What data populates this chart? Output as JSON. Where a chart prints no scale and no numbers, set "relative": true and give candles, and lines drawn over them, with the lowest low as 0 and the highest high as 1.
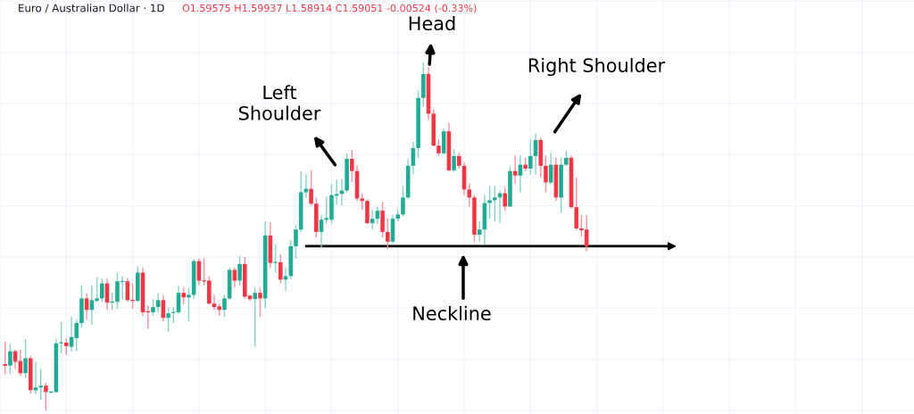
{
  "chart_data": {
    "type": "candlestick",
    "relative": true,
    "title": "Euro / Australian Dollar · 1D",
    "subtitle": "O1.59575 H1.59937 L1.58914 C1.59051 -0.00524 (-0.33%)",
    "annotations": [
      "Head",
      "Left\nShoulder",
      "Right Shoulder",
      "Neckline"
    ],
    "ref_lines": [
      {
        "axis": "y",
        "value": 0.472,
        "color": "#000000"
      }
    ],
    "grid": true,
    "categories": [
      null,
      null,
      null,
      null,
      null,
      null,
      null,
      null,
      null,
      null,
      null,
      null,
      null,
      null,
      null,
      null,
      null,
      null,
      null,
      null,
      null,
      null,
      null,
      null,
      null,
      null,
      null,
      null,
      null,
      null,
      null,
      null,
      null,
      null,
      null,
      null,
      null,
      null,
      null,
      null,
      null,
      null,
      null,
      null,
      null,
      null,
      null,
      null,
      null,
      null,
      null,
      null,
      null,
      null,
      null,
      null,
      null,
      null,
      null,
      null,
      null,
      null,
      null,
      null,
      null,
      null,
      null,
      null,
      null,
      null,
      null,
      null,
      null,
      null,
      null,
      null,
      null,
      null,
      null,
      null,
      null,
      null,
      null,
      null,
      null,
      null,
      null,
      null,
      null,
      null,
      null,
      null,
      null,
      null,
      null,
      null,
      null,
      null,
      null,
      null,
      null,
      null,
      null,
      null,
      null,
      null,
      null,
      null,
      null,
      null,
      null,
      null,
      null,
      null,
      null
    ],
    "ohlc": [
      [
        0.133,
        0.198,
        0.104,
        0.128
      ],
      [
        0.129,
        0.19,
        0.104,
        0.17
      ],
      [
        0.17,
        0.175,
        0.119,
        0.14
      ],
      [
        0.142,
        0.175,
        0.099,
        0.107
      ],
      [
        0.107,
        0.206,
        0.094,
        0.15
      ],
      [
        0.15,
        0.157,
        0.048,
        0.058
      ],
      [
        0.058,
        0.14,
        0.046,
        0.066
      ],
      [
        0.066,
        0.119,
        0.03,
        0.071
      ],
      [
        0.071,
        0.079,
        0.0,
        0.053
      ],
      [
        0.051,
        0.056,
        0.048,
        0.053
      ],
      [
        0.053,
        0.206,
        0.051,
        0.193
      ],
      [
        0.193,
        0.254,
        0.165,
        0.195
      ],
      [
        0.195,
        0.208,
        0.16,
        0.185
      ],
      [
        0.183,
        0.269,
        0.17,
        0.211
      ],
      [
        0.208,
        0.261,
        0.17,
        0.251
      ],
      [
        0.251,
        0.36,
        0.239,
        0.322
      ],
      [
        0.322,
        0.335,
        0.261,
        0.289
      ],
      [
        0.289,
        0.36,
        0.246,
        0.317
      ],
      [
        0.315,
        0.383,
        0.31,
        0.322
      ],
      [
        0.322,
        0.378,
        0.31,
        0.365
      ],
      [
        0.365,
        0.378,
        0.289,
        0.31
      ],
      [
        0.31,
        0.34,
        0.289,
        0.312
      ],
      [
        0.312,
        0.396,
        0.292,
        0.371
      ],
      [
        0.369,
        0.386,
        0.32,
        0.372
      ],
      [
        0.371,
        0.381,
        0.312,
        0.317
      ],
      [
        0.317,
        0.365,
        0.292,
        0.315
      ],
      [
        0.315,
        0.414,
        0.312,
        0.396
      ],
      [
        0.396,
        0.411,
        0.272,
        0.282
      ],
      [
        0.284,
        0.302,
        0.234,
        0.282
      ],
      [
        0.282,
        0.32,
        0.272,
        0.297
      ],
      [
        0.297,
        0.338,
        0.282,
        0.317
      ],
      [
        0.317,
        0.33,
        0.256,
        0.266
      ],
      [
        0.266,
        0.297,
        0.226,
        0.279
      ],
      [
        0.28,
        0.297,
        0.251,
        0.282
      ],
      [
        0.282,
        0.358,
        0.277,
        0.338
      ],
      [
        0.338,
        0.353,
        0.305,
        0.325
      ],
      [
        0.325,
        0.353,
        0.256,
        0.332
      ],
      [
        0.332,
        0.434,
        0.32,
        0.429
      ],
      [
        0.429,
        0.437,
        0.36,
        0.373
      ],
      [
        0.373,
        0.437,
        0.358,
        0.371
      ],
      [
        0.373,
        0.386,
        0.305,
        0.307
      ],
      [
        0.307,
        0.332,
        0.289,
        0.297
      ],
      [
        0.299,
        0.307,
        0.272,
        0.289
      ],
      [
        0.289,
        0.332,
        0.269,
        0.322
      ],
      [
        0.322,
        0.411,
        0.317,
        0.404
      ],
      [
        0.404,
        0.411,
        0.353,
        0.373
      ],
      [
        0.373,
        0.444,
        0.36,
        0.421
      ],
      [
        0.421,
        0.442,
        0.322,
        0.327
      ],
      [
        0.33,
        0.332,
        0.315,
        0.32
      ],
      [
        0.32,
        0.353,
        0.183,
        0.338
      ],
      [
        0.338,
        0.353,
        0.269,
        0.322
      ],
      [
        0.322,
        0.543,
        0.294,
        0.503
      ],
      [
        0.503,
        0.541,
        0.409,
        0.424
      ],
      [
        0.424,
        0.477,
        0.396,
        0.426
      ],
      [
        0.426,
        0.449,
        0.365,
        0.376
      ],
      [
        0.376,
        0.411,
        0.343,
        0.386
      ],
      [
        0.386,
        0.49,
        0.376,
        0.472
      ],
      [
        0.472,
        0.533,
        0.437,
        0.52
      ],
      [
        0.52,
        0.688,
        0.513,
        0.627
      ],
      [
        0.627,
        0.678,
        0.612,
        0.637
      ],
      [
        0.637,
        0.69,
        0.589,
        0.594
      ],
      [
        0.594,
        0.612,
        0.497,
        0.513
      ],
      [
        0.513,
        0.561,
        0.467,
        0.548
      ],
      [
        0.548,
        0.614,
        0.536,
        0.553
      ],
      [
        0.548,
        0.65,
        0.538,
        0.619
      ],
      [
        0.617,
        0.662,
        0.591,
        0.622
      ],
      [
        0.622,
        0.665,
        0.589,
        0.632
      ],
      [
        0.632,
        0.739,
        0.627,
        0.723
      ],
      [
        0.723,
        0.749,
        0.657,
        0.688
      ],
      [
        0.688,
        0.703,
        0.602,
        0.609
      ],
      [
        0.609,
        0.624,
        0.576,
        0.602
      ],
      [
        0.602,
        0.607,
        0.536,
        0.538
      ],
      [
        0.538,
        0.576,
        0.52,
        0.551
      ],
      [
        0.551,
        0.586,
        0.536,
        0.574
      ],
      [
        0.574,
        0.599,
        0.497,
        0.513
      ],
      [
        0.513,
        0.553,
        0.464,
        0.485
      ],
      [
        0.485,
        0.563,
        0.48,
        0.551
      ],
      [
        0.551,
        0.576,
        0.543,
        0.563
      ],
      [
        0.563,
        0.645,
        0.558,
        0.612
      ],
      [
        0.612,
        0.721,
        0.607,
        0.703
      ],
      [
        0.703,
        0.772,
        0.678,
        0.754
      ],
      [
        0.754,
        0.919,
        0.726,
        0.898
      ],
      [
        0.898,
        1.0,
        0.873,
        0.967
      ],
      [
        0.967,
        0.987,
        0.835,
        0.853
      ],
      [
        0.853,
        0.865,
        0.759,
        0.761
      ],
      [
        0.761,
        0.779,
        0.733,
        0.739
      ],
      [
        0.739,
        0.81,
        0.736,
        0.802
      ],
      [
        0.802,
        0.827,
        0.688,
        0.69
      ],
      [
        0.69,
        0.751,
        0.685,
        0.731
      ],
      [
        0.731,
        0.741,
        0.695,
        0.703
      ],
      [
        0.703,
        0.713,
        0.619,
        0.635
      ],
      [
        0.635,
        0.652,
        0.586,
        0.612
      ],
      [
        0.612,
        0.619,
        0.485,
        0.505
      ],
      [
        0.505,
        0.543,
        0.485,
        0.52
      ],
      [
        0.52,
        0.619,
        0.477,
        0.596
      ],
      [
        0.596,
        0.645,
        0.551,
        0.604
      ],
      [
        0.604,
        0.645,
        0.543,
        0.612
      ],
      [
        0.612,
        0.632,
        0.538,
        0.624
      ],
      [
        0.624,
        0.64,
        0.574,
        0.586
      ],
      [
        0.586,
        0.701,
        0.584,
        0.688
      ],
      [
        0.688,
        0.733,
        0.652,
        0.675
      ],
      [
        0.675,
        0.733,
        0.627,
        0.706
      ],
      [
        0.706,
        0.726,
        0.688,
        0.695
      ],
      [
        0.695,
        0.779,
        0.678,
        0.731
      ],
      [
        0.731,
        0.797,
        0.678,
        0.777
      ],
      [
        0.777,
        0.784,
        0.67,
        0.703
      ],
      [
        0.703,
        0.733,
        0.627,
        0.655
      ],
      [
        0.655,
        0.739,
        0.65,
        0.706
      ],
      [
        0.706,
        0.726,
        0.602,
        0.612
      ],
      [
        0.612,
        0.726,
        0.569,
        0.706
      ],
      [
        0.706,
        0.746,
        0.703,
        0.726
      ],
      [
        0.726,
        0.733,
        0.581,
        0.584
      ],
      [
        0.584,
        0.67,
        0.518,
        0.523
      ],
      [
        0.523,
        0.561,
        0.5,
        0.518
      ],
      [
        0.52,
        0.561,
        0.457,
        0.472
      ]
    ],
    "colors": [
      "#f23645",
      "#22ab94",
      "#f23645",
      "#f23645",
      "#22ab94",
      "#f23645",
      "#22ab94",
      "#22ab94",
      "#f23645",
      "#22ab94",
      "#22ab94",
      "#22ab94",
      "#f23645",
      "#22ab94",
      "#22ab94",
      "#22ab94",
      "#f23645",
      "#22ab94",
      "#22ab94",
      "#22ab94",
      "#f23645",
      "#22ab94",
      "#22ab94",
      "#22ab94",
      "#f23645",
      "#f23645",
      "#22ab94",
      "#f23645",
      "#f23645",
      "#22ab94",
      "#22ab94",
      "#f23645",
      "#22ab94",
      "#22ab94",
      "#22ab94",
      "#f23645",
      "#22ab94",
      "#22ab94",
      "#f23645",
      "#f23645",
      "#f23645",
      "#f23645",
      "#f23645",
      "#22ab94",
      "#22ab94",
      "#f23645",
      "#22ab94",
      "#f23645",
      "#f23645",
      "#22ab94",
      "#f23645",
      "#22ab94",
      "#f23645",
      "#22ab94",
      "#f23645",
      "#22ab94",
      "#22ab94",
      "#22ab94",
      "#22ab94",
      "#22ab94",
      "#f23645",
      "#f23645",
      "#22ab94",
      "#22ab94",
      "#22ab94",
      "#22ab94",
      "#22ab94",
      "#22ab94",
      "#f23645",
      "#f23645",
      "#f23645",
      "#f23645",
      "#22ab94",
      "#22ab94",
      "#f23645",
      "#f23645",
      "#22ab94",
      "#22ab94",
      "#22ab94",
      "#22ab94",
      "#22ab94",
      "#22ab94",
      "#22ab94",
      "#f23645",
      "#f23645",
      "#f23645",
      "#22ab94",
      "#f23645",
      "#22ab94",
      "#f23645",
      "#f23645",
      "#f23645",
      "#f23645",
      "#22ab94",
      "#22ab94",
      "#22ab94",
      "#22ab94",
      "#22ab94",
      "#f23645",
      "#22ab94",
      "#f23645",
      "#22ab94",
      "#f23645",
      "#22ab94",
      "#22ab94",
      "#f23645",
      "#f23645",
      "#22ab94",
      "#f23645",
      "#22ab94",
      "#22ab94",
      "#f23645",
      "#f23645",
      "#f23645",
      "#f23645"
    ]
  }
}
